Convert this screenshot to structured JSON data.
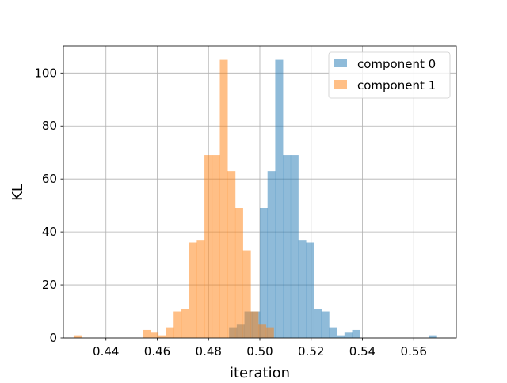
{
  "chart_data": {
    "type": "histogram",
    "xlabel": "iteration",
    "ylabel": "KL",
    "xlim": [
      0.4234,
      0.5766
    ],
    "ylim": [
      0,
      110.25
    ],
    "grid": true,
    "legend_placement": "top-right",
    "x_ticks": [
      "0.44",
      "0.46",
      "0.48",
      "0.50",
      "0.52",
      "0.54",
      "0.56"
    ],
    "x_tick_values": [
      0.44,
      0.46,
      0.48,
      0.5,
      0.52,
      0.54,
      0.56
    ],
    "y_ticks": [
      "0",
      "20",
      "40",
      "60",
      "80",
      "100"
    ],
    "y_tick_values": [
      0,
      20,
      40,
      60,
      80,
      100
    ],
    "series": [
      {
        "name": "component 0",
        "color": "#1f77b4",
        "alpha": 0.5,
        "bins": [
          {
            "x0": 0.488,
            "x1": 0.491,
            "y": 4
          },
          {
            "x0": 0.491,
            "x1": 0.494,
            "y": 5
          },
          {
            "x0": 0.494,
            "x1": 0.497,
            "y": 10
          },
          {
            "x0": 0.497,
            "x1": 0.5,
            "y": 10
          },
          {
            "x0": 0.5,
            "x1": 0.503,
            "y": 49
          },
          {
            "x0": 0.503,
            "x1": 0.506,
            "y": 63
          },
          {
            "x0": 0.506,
            "x1": 0.509,
            "y": 105
          },
          {
            "x0": 0.509,
            "x1": 0.512,
            "y": 69
          },
          {
            "x0": 0.512,
            "x1": 0.515,
            "y": 69
          },
          {
            "x0": 0.515,
            "x1": 0.518,
            "y": 37
          },
          {
            "x0": 0.518,
            "x1": 0.521,
            "y": 36
          },
          {
            "x0": 0.521,
            "x1": 0.524,
            "y": 11
          },
          {
            "x0": 0.524,
            "x1": 0.527,
            "y": 10
          },
          {
            "x0": 0.527,
            "x1": 0.53,
            "y": 4
          },
          {
            "x0": 0.53,
            "x1": 0.533,
            "y": 1
          },
          {
            "x0": 0.533,
            "x1": 0.536,
            "y": 2
          },
          {
            "x0": 0.536,
            "x1": 0.539,
            "y": 3
          },
          {
            "x0": 0.566,
            "x1": 0.569,
            "y": 1
          }
        ]
      },
      {
        "name": "component 1",
        "color": "#ff7f0e",
        "alpha": 0.5,
        "bins": [
          {
            "x0": 0.4274,
            "x1": 0.4304,
            "y": 1
          },
          {
            "x0": 0.4544,
            "x1": 0.4574,
            "y": 3
          },
          {
            "x0": 0.4574,
            "x1": 0.4604,
            "y": 2
          },
          {
            "x0": 0.4604,
            "x1": 0.4634,
            "y": 1
          },
          {
            "x0": 0.4634,
            "x1": 0.4664,
            "y": 4
          },
          {
            "x0": 0.4664,
            "x1": 0.4694,
            "y": 10
          },
          {
            "x0": 0.4694,
            "x1": 0.4724,
            "y": 11
          },
          {
            "x0": 0.4724,
            "x1": 0.4754,
            "y": 36
          },
          {
            "x0": 0.4754,
            "x1": 0.4784,
            "y": 37
          },
          {
            "x0": 0.4784,
            "x1": 0.4814,
            "y": 69
          },
          {
            "x0": 0.4814,
            "x1": 0.4844,
            "y": 69
          },
          {
            "x0": 0.4844,
            "x1": 0.4874,
            "y": 105
          },
          {
            "x0": 0.4874,
            "x1": 0.4904,
            "y": 63
          },
          {
            "x0": 0.4904,
            "x1": 0.4934,
            "y": 49
          },
          {
            "x0": 0.4934,
            "x1": 0.4964,
            "y": 33
          },
          {
            "x0": 0.4964,
            "x1": 0.4994,
            "y": 10
          },
          {
            "x0": 0.4994,
            "x1": 0.5024,
            "y": 5
          },
          {
            "x0": 0.5024,
            "x1": 0.5054,
            "y": 4
          }
        ]
      }
    ]
  }
}
